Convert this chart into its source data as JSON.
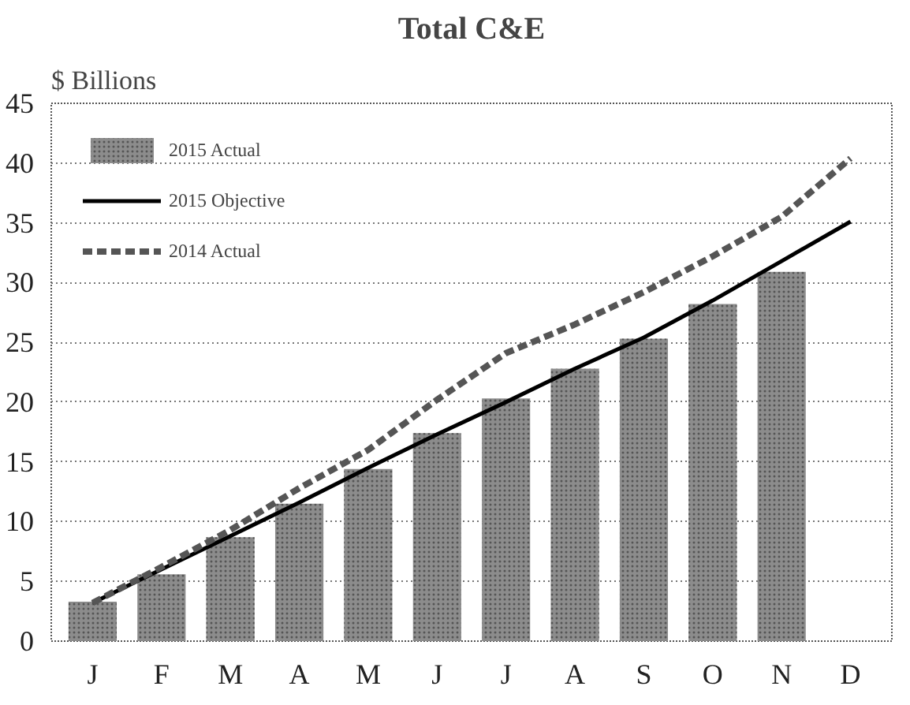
{
  "chart_data": {
    "type": "bar",
    "title": "Total C&E",
    "ylabel": "$ Billions",
    "categories": [
      "J",
      "F",
      "M",
      "A",
      "M",
      "J",
      "J",
      "A",
      "S",
      "O",
      "N",
      "D"
    ],
    "series": [
      {
        "name": "2015 Actual",
        "color": "#8c8c8c",
        "values": [
          3.3,
          5.6,
          8.7,
          11.5,
          14.4,
          17.4,
          20.3,
          22.8,
          25.3,
          28.2,
          30.9,
          null
        ]
      },
      {
        "name": "2015 Objective",
        "type": "line",
        "color": "#000000",
        "line_style": "solid",
        "values": [
          3.2,
          6.0,
          8.8,
          11.6,
          14.5,
          17.3,
          20.0,
          22.8,
          25.4,
          28.5,
          31.8,
          35.1
        ]
      },
      {
        "name": "2014 Actual",
        "type": "line",
        "color": "#555555",
        "line_style": "dashed",
        "values": [
          3.2,
          6.2,
          9.3,
          12.8,
          16.0,
          20.2,
          24.1,
          26.5,
          29.2,
          32.2,
          35.5,
          40.4
        ]
      }
    ],
    "ylim": [
      0,
      45
    ],
    "yticks": [
      0,
      5,
      10,
      15,
      20,
      25,
      30,
      35,
      40,
      45
    ],
    "grid": "y",
    "legend": "top left"
  }
}
